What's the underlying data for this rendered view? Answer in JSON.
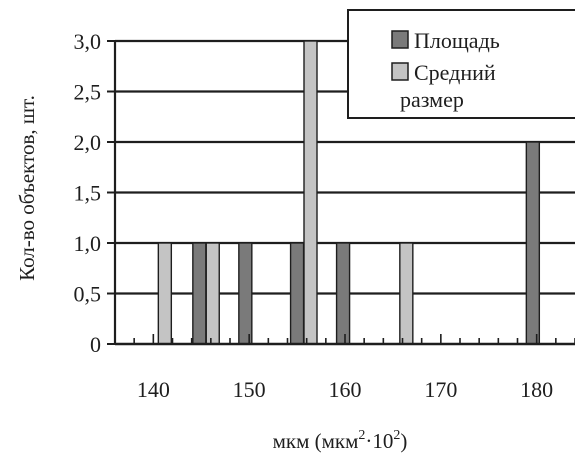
{
  "chart_data": {
    "type": "bar",
    "title": "",
    "ylabel": "Кол-во объектов, шт.",
    "xlabel": {
      "prefix": "мкм (мкм",
      "sup1": "2",
      "mid": "·10",
      "sup2": "2",
      "suffix": ")"
    },
    "xlim": [
      136,
      184
    ],
    "ylim": [
      0,
      3
    ],
    "x_ticks": [
      "140",
      "150",
      "160",
      "170",
      "180"
    ],
    "x_tick_values": [
      140,
      150,
      160,
      170,
      180
    ],
    "y_ticks": [
      "0",
      "0,5",
      "1,0",
      "1,5",
      "2,0",
      "2,5",
      "3,0"
    ],
    "y_tick_values": [
      0,
      0.5,
      1,
      1.5,
      2,
      2.5,
      3
    ],
    "grid": "horizontal",
    "legend_position": "top-right",
    "series": [
      {
        "name": "Площадь",
        "color": "#7a7a7a",
        "points": [
          {
            "x": 144.8,
            "y": 1
          },
          {
            "x": 149.6,
            "y": 1
          },
          {
            "x": 155.0,
            "y": 1
          },
          {
            "x": 159.8,
            "y": 1
          },
          {
            "x": 179.6,
            "y": 2
          }
        ]
      },
      {
        "name": "Средний размер",
        "legend_line1": "Средний",
        "legend_line2": "размер",
        "color": "#c4c4c4",
        "points": [
          {
            "x": 141.2,
            "y": 1
          },
          {
            "x": 146.2,
            "y": 1
          },
          {
            "x": 156.4,
            "y": 3
          },
          {
            "x": 166.4,
            "y": 1
          }
        ]
      }
    ]
  }
}
